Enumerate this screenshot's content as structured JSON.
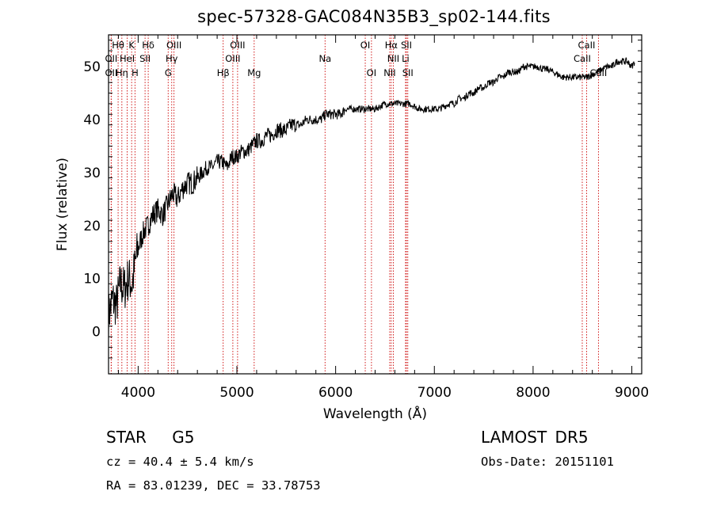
{
  "figure": {
    "title": "spec-57328-GAC084N35B3_sp02-144.fits",
    "info": {
      "class_line": "STAR G5",
      "survey": "LAMOST DR5",
      "redshift_line": "cz = 40.4 ± 5.4 km/s",
      "obs_date_line": "Obs-Date: 20151101",
      "coords_line": "RA =  83.01239, DEC =  33.78753"
    }
  },
  "chart_data": {
    "type": "line",
    "title": "spec-57328-GAC084N35B3_sp02-144.fits",
    "xlabel": "Wavelength (Å)",
    "ylabel": "Flux (relative)",
    "xlim": [
      3700,
      9100
    ],
    "ylim": [
      -8,
      56
    ],
    "xticks": [
      4000,
      5000,
      6000,
      7000,
      8000,
      9000
    ],
    "yticks": [
      0,
      10,
      20,
      30,
      40,
      50
    ],
    "grid": false,
    "line_color": "#000000",
    "marker_color": "#cc0000",
    "series": [
      {
        "x": [
          3700,
          3740,
          3780,
          3820,
          3860,
          3900,
          3940,
          3980,
          4020,
          4060,
          4100,
          4150,
          4200,
          4250,
          4300,
          4350,
          4400,
          4450,
          4500,
          4550,
          4600,
          4650,
          4700,
          4750,
          4800,
          4850,
          4900,
          4950,
          5000,
          5050,
          5100,
          5150,
          5200,
          5250,
          5300,
          5350,
          5400,
          5450,
          5500,
          5550,
          5600,
          5650,
          5700,
          5750,
          5800,
          5850,
          5900,
          5950,
          6000,
          6050,
          6100,
          6150,
          6200,
          6250,
          6300,
          6350,
          6400,
          6450,
          6500,
          6550,
          6600,
          6650,
          6700,
          6750,
          6800,
          6850,
          6900,
          6950,
          7000,
          7050,
          7100,
          7150,
          7200,
          7250,
          7300,
          7350,
          7400,
          7450,
          7500,
          7550,
          7600,
          7650,
          7700,
          7750,
          7800,
          7850,
          7900,
          7950,
          8000,
          8050,
          8100,
          8150,
          8200,
          8250,
          8300,
          8350,
          8400,
          8450,
          8500,
          8550,
          8600,
          8650,
          8700,
          8750,
          8800,
          8850,
          8900,
          8950,
          9000,
          9030
        ],
        "y": [
          3,
          6,
          5,
          9,
          8,
          10,
          9,
          14,
          17,
          19,
          20,
          22,
          23,
          22,
          24,
          26,
          25,
          27,
          28,
          28,
          29,
          30,
          31,
          31,
          32,
          32,
          31,
          33,
          33,
          34,
          34,
          35,
          36,
          36,
          37,
          37,
          38,
          38,
          38,
          39,
          39,
          39,
          40,
          40,
          40,
          40,
          41,
          41,
          41,
          41,
          42,
          42,
          42,
          42,
          42,
          42,
          42,
          42.5,
          43,
          43,
          43,
          43,
          43,
          43,
          42.5,
          42,
          42,
          42,
          42,
          42,
          42.5,
          43,
          43,
          44,
          44,
          45,
          45,
          46,
          46,
          47,
          47,
          48,
          48,
          49,
          49,
          49,
          50,
          50,
          50,
          50,
          49.5,
          49.5,
          49,
          48.5,
          48,
          48,
          48,
          48,
          48,
          48,
          48.5,
          49,
          49.5,
          50,
          50,
          51,
          51,
          51,
          50,
          51
        ]
      }
    ],
    "spectral_lines": [
      {
        "label": "Hθ",
        "x": 3797,
        "row": 1
      },
      {
        "label": "K",
        "x": 3934,
        "row": 1
      },
      {
        "label": "Hδ",
        "x": 4102,
        "row": 1
      },
      {
        "label": "OIII",
        "x": 4363,
        "row": 1
      },
      {
        "label": "OIII",
        "x": 5007,
        "row": 1
      },
      {
        "label": "OI",
        "x": 6300,
        "row": 1
      },
      {
        "label": "Hα",
        "x": 6563,
        "row": 1
      },
      {
        "label": "SII",
        "x": 6717,
        "row": 1
      },
      {
        "label": "CaII",
        "x": 8542,
        "row": 1
      },
      {
        "label": "OII",
        "x": 3727,
        "row": 2
      },
      {
        "label": "HeI",
        "x": 3889,
        "row": 2
      },
      {
        "label": "SII",
        "x": 4070,
        "row": 2
      },
      {
        "label": "Hγ",
        "x": 4340,
        "row": 2
      },
      {
        "label": "OIII",
        "x": 4959,
        "row": 2
      },
      {
        "label": "Na",
        "x": 5893,
        "row": 2
      },
      {
        "label": "NII",
        "x": 6584,
        "row": 2
      },
      {
        "label": "Li",
        "x": 6708,
        "row": 2
      },
      {
        "label": "CaII",
        "x": 8498,
        "row": 2
      },
      {
        "label": "OII",
        "x": 3727,
        "row": 3
      },
      {
        "label": "Hη",
        "x": 3835,
        "row": 3
      },
      {
        "label": "H",
        "x": 3968,
        "row": 3
      },
      {
        "label": "G",
        "x": 4304,
        "row": 3
      },
      {
        "label": "Hβ",
        "x": 4861,
        "row": 3
      },
      {
        "label": "Mg",
        "x": 5175,
        "row": 3
      },
      {
        "label": "OI",
        "x": 6363,
        "row": 3
      },
      {
        "label": "NII",
        "x": 6548,
        "row": 3
      },
      {
        "label": "SII",
        "x": 6731,
        "row": 3
      },
      {
        "label": "CaII",
        "x": 8662,
        "row": 3
      }
    ]
  }
}
